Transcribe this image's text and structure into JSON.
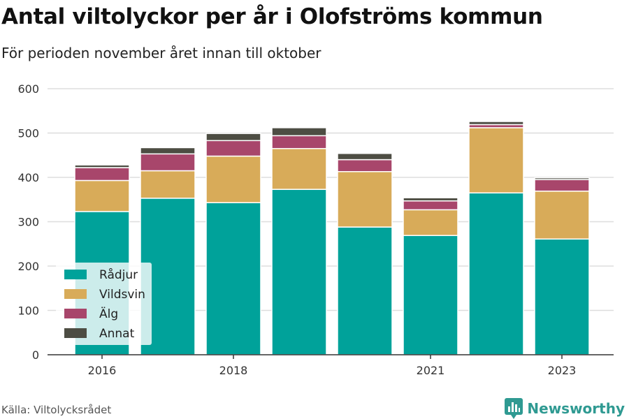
{
  "header": {
    "title": "Antal viltolyckor per år i Olofströms kommun",
    "subtitle": "För perioden november året innan till oktober"
  },
  "footer": {
    "source": "Källa: Viltolycksrådet",
    "brand": "Newsworthy",
    "brand_icon": "bar-chart-logo-icon",
    "brand_color": "#2f9a92"
  },
  "chart_data": {
    "type": "bar",
    "stacked": true,
    "categories": [
      "2016",
      "2017",
      "2018",
      "2019",
      "2020",
      "2021",
      "2022",
      "2023"
    ],
    "tick_labels": [
      "2016",
      "",
      "2018",
      "",
      "",
      "2021",
      "",
      "2023"
    ],
    "series": [
      {
        "name": "Rådjur",
        "color": "#00a29a",
        "values": [
          323,
          353,
          343,
          373,
          288,
          269,
          365,
          261
        ]
      },
      {
        "name": "Vildsvin",
        "color": "#d8ab59",
        "values": [
          70,
          62,
          105,
          92,
          125,
          58,
          147,
          108
        ]
      },
      {
        "name": "Älg",
        "color": "#a8466b",
        "values": [
          29,
          38,
          35,
          29,
          27,
          20,
          7,
          26
        ]
      },
      {
        "name": "Annat",
        "color": "#4d4d43",
        "values": [
          6,
          14,
          16,
          18,
          14,
          7,
          7,
          4
        ]
      }
    ],
    "ylim": [
      0,
      600
    ],
    "yticks": [
      0,
      100,
      200,
      300,
      400,
      500,
      600
    ],
    "grid": true,
    "legend_position": "bottom-left",
    "xlabel": "",
    "ylabel": ""
  }
}
